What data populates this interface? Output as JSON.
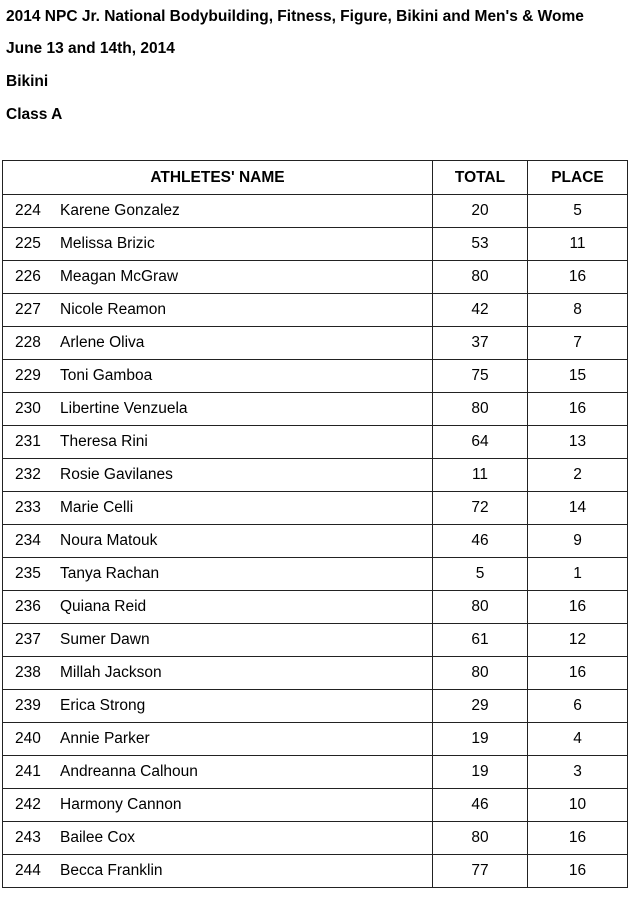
{
  "header": {
    "title": "2014 NPC Jr. National Bodybuilding, Fitness, Figure, Bikini and Men's & Wome",
    "date": "June 13 and 14th, 2014",
    "division": "Bikini",
    "class": "Class A"
  },
  "table": {
    "columns": [
      "ATHLETES' NAME",
      "TOTAL",
      "PLACE"
    ],
    "rows": [
      {
        "number": "224",
        "name": "Karene Gonzalez",
        "total": "20",
        "place": "5"
      },
      {
        "number": "225",
        "name": "Melissa Brizic",
        "total": "53",
        "place": "11"
      },
      {
        "number": "226",
        "name": "Meagan McGraw",
        "total": "80",
        "place": "16"
      },
      {
        "number": "227",
        "name": "Nicole Reamon",
        "total": "42",
        "place": "8"
      },
      {
        "number": "228",
        "name": "Arlene Oliva",
        "total": "37",
        "place": "7"
      },
      {
        "number": "229",
        "name": "Toni Gamboa",
        "total": "75",
        "place": "15"
      },
      {
        "number": "230",
        "name": "Libertine Venzuela",
        "total": "80",
        "place": "16"
      },
      {
        "number": "231",
        "name": "Theresa Rini",
        "total": "64",
        "place": "13"
      },
      {
        "number": "232",
        "name": "Rosie Gavilanes",
        "total": "11",
        "place": "2"
      },
      {
        "number": "233",
        "name": "Marie Celli",
        "total": "72",
        "place": "14"
      },
      {
        "number": "234",
        "name": "Noura Matouk",
        "total": "46",
        "place": "9"
      },
      {
        "number": "235",
        "name": "Tanya Rachan",
        "total": "5",
        "place": "1"
      },
      {
        "number": "236",
        "name": "Quiana Reid",
        "total": "80",
        "place": "16"
      },
      {
        "number": "237",
        "name": "Sumer Dawn",
        "total": "61",
        "place": "12"
      },
      {
        "number": "238",
        "name": "Millah Jackson",
        "total": "80",
        "place": "16"
      },
      {
        "number": "239",
        "name": "Erica Strong",
        "total": "29",
        "place": "6"
      },
      {
        "number": "240",
        "name": "Annie Parker",
        "total": "19",
        "place": "4"
      },
      {
        "number": "241",
        "name": "Andreanna Calhoun",
        "total": "19",
        "place": "3"
      },
      {
        "number": "242",
        "name": "Harmony Cannon",
        "total": "46",
        "place": "10"
      },
      {
        "number": "243",
        "name": "Bailee Cox",
        "total": "80",
        "place": "16"
      },
      {
        "number": "244",
        "name": "Becca Franklin",
        "total": "77",
        "place": "16"
      }
    ]
  }
}
